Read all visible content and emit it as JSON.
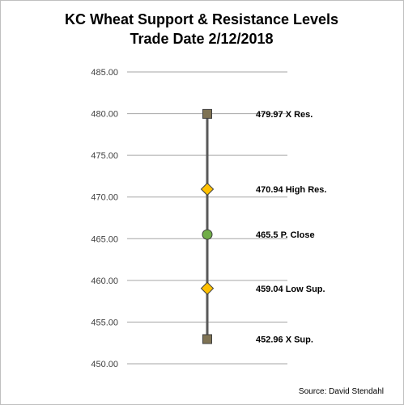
{
  "chart_data": {
    "type": "scatter",
    "title_line1": "KC Wheat Support & Resistance Levels",
    "title_line2": "Trade Date 2/12/2018",
    "ylim": [
      450,
      485
    ],
    "yticks": [
      "485.00",
      "480.00",
      "475.00",
      "470.00",
      "465.00",
      "460.00",
      "455.00",
      "450.00"
    ],
    "ytick_values": [
      485,
      480,
      475,
      470,
      465,
      460,
      455,
      450
    ],
    "grid": true,
    "points": [
      {
        "value": 479.97,
        "label": "479.97 X Res.",
        "marker": "square",
        "color": "#7f7354"
      },
      {
        "value": 470.94,
        "label": "470.94 High Res.",
        "marker": "diamond",
        "color": "#ffc000"
      },
      {
        "value": 465.5,
        "label": "465.5  P. Close",
        "marker": "circle",
        "color": "#70ad47"
      },
      {
        "value": 459.04,
        "label": "459.04 Low Sup.",
        "marker": "diamond",
        "color": "#ffc000"
      },
      {
        "value": 452.96,
        "label": "452.96  X Sup.",
        "marker": "square",
        "color": "#7f7354"
      }
    ],
    "connector_color": "#595959",
    "gridline_color": "#a6a6a6",
    "source": "Source: David Stendahl"
  }
}
